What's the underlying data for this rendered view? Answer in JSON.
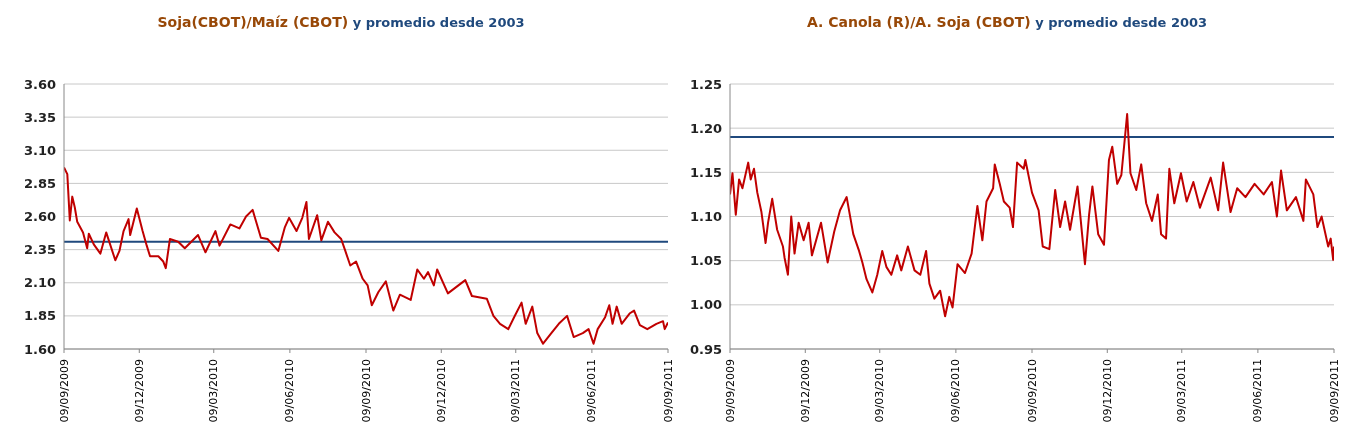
{
  "chart_data": [
    {
      "type": "line",
      "title": "Soja(CBOT)/Maíz (CBOT)",
      "x": [
        "2009-09-09",
        "2009-09-13",
        "2009-09-16",
        "2009-09-19",
        "2009-09-22",
        "2009-09-25",
        "2009-10-02",
        "2009-10-07",
        "2009-10-09",
        "2009-10-15",
        "2009-10-23",
        "2009-10-30",
        "2009-11-10",
        "2009-11-15",
        "2009-11-20",
        "2009-11-26",
        "2009-11-28",
        "2009-12-06",
        "2009-12-13",
        "2009-12-18",
        "2009-12-22",
        "2010-01-01",
        "2010-01-07",
        "2010-01-10",
        "2010-01-15",
        "2010-01-25",
        "2010-02-02",
        "2010-02-18",
        "2010-02-27",
        "2010-03-11",
        "2010-03-16",
        "2010-03-29",
        "2010-04-09",
        "2010-04-17",
        "2010-04-25",
        "2010-05-05",
        "2010-05-13",
        "2010-05-26",
        "2010-06-03",
        "2010-06-08",
        "2010-06-17",
        "2010-06-24",
        "2010-06-29",
        "2010-07-02",
        "2010-07-12",
        "2010-07-17",
        "2010-07-25",
        "2010-08-02",
        "2010-08-10",
        "2010-08-15",
        "2010-08-21",
        "2010-08-28",
        "2010-09-05",
        "2010-09-11",
        "2010-09-16",
        "2010-09-24",
        "2010-10-03",
        "2010-10-12",
        "2010-10-20",
        "2010-11-02",
        "2010-11-10",
        "2010-11-18",
        "2010-11-23",
        "2010-11-30",
        "2010-12-04",
        "2010-12-17",
        "2011-01-07",
        "2011-01-15",
        "2011-02-02",
        "2011-02-10",
        "2011-02-18",
        "2011-02-28",
        "2011-03-07",
        "2011-03-16",
        "2011-03-21",
        "2011-03-29",
        "2011-04-04",
        "2011-04-11",
        "2011-04-21",
        "2011-04-30",
        "2011-05-10",
        "2011-05-18",
        "2011-05-29",
        "2011-06-05",
        "2011-06-11",
        "2011-06-16",
        "2011-06-25",
        "2011-06-30",
        "2011-07-04",
        "2011-07-09",
        "2011-07-15",
        "2011-07-25",
        "2011-07-30",
        "2011-08-06",
        "2011-08-15",
        "2011-08-26",
        "2011-09-03",
        "2011-09-05",
        "2011-09-09"
      ],
      "series": [
        {
          "color": "#c00000",
          "values": [
            2.97,
            2.92,
            2.57,
            2.75,
            2.67,
            2.56,
            2.48,
            2.36,
            2.47,
            2.39,
            2.32,
            2.48,
            2.27,
            2.34,
            2.49,
            2.58,
            2.46,
            2.66,
            2.49,
            2.38,
            2.3,
            2.3,
            2.26,
            2.21,
            2.43,
            2.41,
            2.36,
            2.46,
            2.33,
            2.49,
            2.38,
            2.54,
            2.51,
            2.6,
            2.65,
            2.44,
            2.43,
            2.34,
            2.52,
            2.59,
            2.49,
            2.59,
            2.71,
            2.43,
            2.61,
            2.42,
            2.56,
            2.48,
            2.43,
            2.34,
            2.23,
            2.26,
            2.13,
            2.08,
            1.93,
            2.03,
            2.11,
            1.89,
            2.01,
            1.97,
            2.2,
            2.13,
            2.18,
            2.08,
            2.2,
            2.02,
            2.12,
            2.0,
            1.98,
            1.85,
            1.79,
            1.75,
            1.84,
            1.95,
            1.79,
            1.92,
            1.72,
            1.64,
            1.72,
            1.79,
            1.85,
            1.69,
            1.72,
            1.75,
            1.64,
            1.75,
            1.84,
            1.93,
            1.79,
            1.92,
            1.79,
            1.87,
            1.89,
            1.78,
            1.75,
            1.79,
            1.81,
            1.75,
            1.8
          ]
        }
      ],
      "ref_lines": [
        {
          "axis": "y",
          "value": 2.41,
          "label": "y promedio desde 2003",
          "color": "#1f497d"
        }
      ],
      "xlim": [
        "2009-09-09",
        "2011-09-09"
      ],
      "xticks": [
        {
          "value": "2009-09-09",
          "label": "09/09/2009"
        },
        {
          "value": "2009-12-09",
          "label": "09/12/2009"
        },
        {
          "value": "2010-03-09",
          "label": "09/03/2010"
        },
        {
          "value": "2010-06-09",
          "label": "09/06/2010"
        },
        {
          "value": "2010-09-09",
          "label": "09/09/2010"
        },
        {
          "value": "2010-12-09",
          "label": "09/12/2010"
        },
        {
          "value": "2011-03-09",
          "label": "09/03/2011"
        },
        {
          "value": "2011-06-09",
          "label": "09/06/2011"
        },
        {
          "value": "2011-09-09",
          "label": "09/09/2011"
        }
      ],
      "ylim": [
        1.6,
        3.6
      ],
      "yticks": [
        {
          "value": 1.6,
          "label": "1.60"
        },
        {
          "value": 1.85,
          "label": "1.85"
        },
        {
          "value": 2.1,
          "label": "2.10"
        },
        {
          "value": 2.35,
          "label": "2.35"
        },
        {
          "value": 2.6,
          "label": "2.60"
        },
        {
          "value": 2.85,
          "label": "2.85"
        },
        {
          "value": 3.1,
          "label": "3.10"
        },
        {
          "value": 3.35,
          "label": "3.35"
        },
        {
          "value": 3.6,
          "label": "3.60"
        }
      ],
      "grid": "y",
      "legend": false,
      "marker": "none",
      "line_style": "solid"
    },
    {
      "type": "line",
      "title": "A. Canola (R)/A. Soja (CBOT)",
      "x": [
        "2009-09-09",
        "2009-09-12",
        "2009-09-16",
        "2009-09-20",
        "2009-09-24",
        "2009-10-01",
        "2009-10-04",
        "2009-10-08",
        "2009-10-12",
        "2009-10-17",
        "2009-10-22",
        "2009-10-25",
        "2009-10-30",
        "2009-11-05",
        "2009-11-12",
        "2009-11-14",
        "2009-11-18",
        "2009-11-22",
        "2009-11-26",
        "2009-12-01",
        "2009-12-07",
        "2009-12-13",
        "2009-12-17",
        "2009-12-28",
        "2010-01-05",
        "2010-01-13",
        "2010-01-20",
        "2010-01-28",
        "2010-02-05",
        "2010-02-12",
        "2010-02-16",
        "2010-02-21",
        "2010-02-28",
        "2010-03-06",
        "2010-03-12",
        "2010-03-17",
        "2010-03-23",
        "2010-03-30",
        "2010-04-04",
        "2010-04-12",
        "2010-04-20",
        "2010-04-27",
        "2010-05-04",
        "2010-05-08",
        "2010-05-14",
        "2010-05-21",
        "2010-05-27",
        "2010-06-01",
        "2010-06-05",
        "2010-06-11",
        "2010-06-20",
        "2010-06-28",
        "2010-07-05",
        "2010-07-11",
        "2010-07-16",
        "2010-07-24",
        "2010-07-26",
        "2010-08-01",
        "2010-08-06",
        "2010-08-13",
        "2010-08-17",
        "2010-08-22",
        "2010-08-30",
        "2010-09-01",
        "2010-09-09",
        "2010-09-17",
        "2010-09-22",
        "2010-09-30",
        "2010-10-07",
        "2010-10-13",
        "2010-10-19",
        "2010-10-25",
        "2010-11-03",
        "2010-11-12",
        "2010-11-17",
        "2010-11-21",
        "2010-11-28",
        "2010-12-05",
        "2010-12-11",
        "2010-12-15",
        "2010-12-21",
        "2010-12-26",
        "2011-01-02",
        "2011-01-06",
        "2011-01-13",
        "2011-01-19",
        "2011-01-25",
        "2011-02-01",
        "2011-02-08",
        "2011-02-12",
        "2011-02-18",
        "2011-02-22",
        "2011-02-28",
        "2011-03-08",
        "2011-03-15",
        "2011-03-23",
        "2011-03-31",
        "2011-04-13",
        "2011-04-22",
        "2011-04-28",
        "2011-05-07",
        "2011-05-15",
        "2011-05-25",
        "2011-06-05",
        "2011-06-16",
        "2011-06-26",
        "2011-07-02",
        "2011-07-07",
        "2011-07-14",
        "2011-07-25",
        "2011-08-03",
        "2011-08-06",
        "2011-08-15",
        "2011-08-20",
        "2011-08-25",
        "2011-09-02",
        "2011-09-05",
        "2011-09-08",
        "2011-09-09"
      ],
      "series": [
        {
          "color": "#c00000",
          "values": [
            1.125,
            1.149,
            1.102,
            1.142,
            1.132,
            1.161,
            1.142,
            1.154,
            1.127,
            1.105,
            1.07,
            1.093,
            1.12,
            1.085,
            1.066,
            1.053,
            1.034,
            1.1,
            1.058,
            1.093,
            1.073,
            1.093,
            1.056,
            1.093,
            1.048,
            1.083,
            1.107,
            1.122,
            1.08,
            1.061,
            1.048,
            1.029,
            1.014,
            1.034,
            1.061,
            1.043,
            1.034,
            1.056,
            1.039,
            1.066,
            1.039,
            1.034,
            1.061,
            1.024,
            1.007,
            1.016,
            0.987,
            1.009,
            0.997,
            1.046,
            1.036,
            1.058,
            1.112,
            1.073,
            1.117,
            1.132,
            1.159,
            1.137,
            1.117,
            1.11,
            1.088,
            1.161,
            1.154,
            1.164,
            1.127,
            1.107,
            1.066,
            1.063,
            1.13,
            1.088,
            1.117,
            1.085,
            1.134,
            1.046,
            1.102,
            1.134,
            1.08,
            1.068,
            1.164,
            1.179,
            1.137,
            1.147,
            1.216,
            1.149,
            1.13,
            1.159,
            1.115,
            1.095,
            1.125,
            1.08,
            1.075,
            1.154,
            1.115,
            1.149,
            1.117,
            1.139,
            1.11,
            1.144,
            1.107,
            1.161,
            1.105,
            1.132,
            1.122,
            1.137,
            1.125,
            1.139,
            1.1,
            1.152,
            1.107,
            1.122,
            1.095,
            1.142,
            1.125,
            1.088,
            1.1,
            1.066,
            1.075,
            1.051,
            1.066
          ]
        }
      ],
      "ref_lines": [
        {
          "axis": "y",
          "value": 1.19,
          "label": "y promedio desde 2003",
          "color": "#1f497d"
        }
      ],
      "xlim": [
        "2009-09-09",
        "2011-09-09"
      ],
      "xticks": [
        {
          "value": "2009-09-09",
          "label": "09/09/2009"
        },
        {
          "value": "2009-12-09",
          "label": "09/12/2009"
        },
        {
          "value": "2010-03-09",
          "label": "09/03/2010"
        },
        {
          "value": "2010-06-09",
          "label": "09/06/2010"
        },
        {
          "value": "2010-09-09",
          "label": "09/09/2010"
        },
        {
          "value": "2010-12-09",
          "label": "09/12/2010"
        },
        {
          "value": "2011-03-09",
          "label": "09/03/2011"
        },
        {
          "value": "2011-06-09",
          "label": "09/06/2011"
        },
        {
          "value": "2011-09-09",
          "label": "09/09/2011"
        }
      ],
      "ylim": [
        0.95,
        1.25
      ],
      "yticks": [
        {
          "value": 0.95,
          "label": "0.95"
        },
        {
          "value": 1.0,
          "label": "1.00"
        },
        {
          "value": 1.05,
          "label": "1.05"
        },
        {
          "value": 1.1,
          "label": "1.10"
        },
        {
          "value": 1.15,
          "label": "1.15"
        },
        {
          "value": 1.2,
          "label": "1.20"
        },
        {
          "value": 1.25,
          "label": "1.25"
        }
      ],
      "grid": "y",
      "legend": false,
      "marker": "none",
      "line_style": "solid"
    }
  ]
}
